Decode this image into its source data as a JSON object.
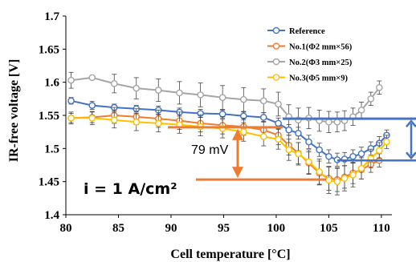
{
  "chart_data": {
    "type": "line",
    "xlabel": "Cell temperature [°C]",
    "ylabel": "IR-free voltage [V]",
    "xlim": [
      80,
      111
    ],
    "ylim": [
      1.4,
      1.7
    ],
    "x_ticks": [
      "80",
      "85",
      "90",
      "95",
      "100",
      "105",
      "110"
    ],
    "y_ticks": [
      "1.4",
      "1.45",
      "1.5",
      "1.55",
      "1.6",
      "1.65",
      "1.7"
    ],
    "legend_position": "top-right",
    "grid": false,
    "series": [
      {
        "name": "Reference",
        "color": "#4472C4",
        "points": [
          [
            80.5,
            1.572
          ],
          [
            82.5,
            1.565
          ],
          [
            84.6,
            1.562
          ],
          [
            86.7,
            1.56
          ],
          [
            88.8,
            1.558
          ],
          [
            90.8,
            1.555
          ],
          [
            92.8,
            1.553
          ],
          [
            94.9,
            1.552
          ],
          [
            96.9,
            1.549
          ],
          [
            98.8,
            1.547
          ],
          [
            100.2,
            1.538
          ],
          [
            101.2,
            1.528
          ],
          [
            102.1,
            1.523
          ],
          [
            103.1,
            1.51
          ],
          [
            104.1,
            1.498
          ],
          [
            105.0,
            1.488
          ],
          [
            105.8,
            1.483
          ],
          [
            106.5,
            1.484
          ],
          [
            107.3,
            1.488
          ],
          [
            108.1,
            1.492
          ],
          [
            109.0,
            1.5
          ],
          [
            109.8,
            1.508
          ],
          [
            110.5,
            1.52
          ]
        ],
        "errors": [
          0.005,
          0.006,
          0.005,
          0.005,
          0.006,
          0.006,
          0.006,
          0.006,
          0.006,
          0.007,
          0.008,
          0.008,
          0.009,
          0.01,
          0.01,
          0.01,
          0.01,
          0.01,
          0.01,
          0.01,
          0.01,
          0.01,
          0.008
        ]
      },
      {
        "name": "No.1(Φ2 mm×56)",
        "color": "#ED7D31",
        "points": [
          [
            80.5,
            1.546
          ],
          [
            82.5,
            1.547
          ],
          [
            84.6,
            1.55
          ],
          [
            86.7,
            1.548
          ],
          [
            88.8,
            1.545
          ],
          [
            90.8,
            1.542
          ],
          [
            92.8,
            1.538
          ],
          [
            94.9,
            1.535
          ],
          [
            96.9,
            1.533
          ],
          [
            98.8,
            1.528
          ],
          [
            100.2,
            1.52
          ],
          [
            101.2,
            1.505
          ],
          [
            102.1,
            1.493
          ],
          [
            103.1,
            1.478
          ],
          [
            104.1,
            1.463
          ],
          [
            105.0,
            1.455
          ],
          [
            105.8,
            1.453
          ],
          [
            106.5,
            1.457
          ],
          [
            107.3,
            1.463
          ],
          [
            108.1,
            1.468
          ],
          [
            109.0,
            1.476
          ],
          [
            109.8,
            1.482
          ]
        ],
        "errors": [
          0.007,
          0.008,
          0.012,
          0.012,
          0.013,
          0.013,
          0.013,
          0.013,
          0.013,
          0.013,
          0.014,
          0.015,
          0.016,
          0.017,
          0.018,
          0.018,
          0.018,
          0.017,
          0.016,
          0.014,
          0.012,
          0.01
        ]
      },
      {
        "name": "No.2(Φ3 mm×25)",
        "color": "#A5A5A5",
        "points": [
          [
            80.5,
            1.603
          ],
          [
            82.5,
            1.607
          ],
          [
            84.6,
            1.598
          ],
          [
            86.7,
            1.591
          ],
          [
            88.8,
            1.588
          ],
          [
            90.8,
            1.584
          ],
          [
            92.8,
            1.581
          ],
          [
            94.9,
            1.577
          ],
          [
            96.9,
            1.574
          ],
          [
            98.8,
            1.572
          ],
          [
            100.2,
            1.567
          ],
          [
            101.2,
            1.548
          ],
          [
            102.1,
            1.543
          ],
          [
            103.1,
            1.546
          ],
          [
            104.1,
            1.542
          ],
          [
            105.0,
            1.54
          ],
          [
            105.8,
            1.54
          ],
          [
            106.5,
            1.542
          ],
          [
            107.3,
            1.548
          ],
          [
            108.1,
            1.558
          ],
          [
            109.0,
            1.575
          ],
          [
            109.8,
            1.592
          ]
        ],
        "errors": [
          0.012,
          0.002,
          0.014,
          0.016,
          0.017,
          0.017,
          0.018,
          0.018,
          0.018,
          0.018,
          0.018,
          0.018,
          0.018,
          0.016,
          0.016,
          0.016,
          0.015,
          0.015,
          0.013,
          0.012,
          0.01,
          0.01
        ]
      },
      {
        "name": "No.3(Φ5 mm×9)",
        "color": "#FFC000",
        "points": [
          [
            80.5,
            1.546
          ],
          [
            82.5,
            1.546
          ],
          [
            84.6,
            1.543
          ],
          [
            86.7,
            1.54
          ],
          [
            88.8,
            1.538
          ],
          [
            90.8,
            1.536
          ],
          [
            92.8,
            1.533
          ],
          [
            94.9,
            1.53
          ],
          [
            96.9,
            1.525
          ],
          [
            98.8,
            1.518
          ],
          [
            100.2,
            1.514
          ],
          [
            101.2,
            1.498
          ],
          [
            102.1,
            1.492
          ],
          [
            103.1,
            1.48
          ],
          [
            104.1,
            1.465
          ],
          [
            105.0,
            1.452
          ],
          [
            105.8,
            1.45
          ],
          [
            106.5,
            1.455
          ],
          [
            107.3,
            1.46
          ],
          [
            108.1,
            1.47
          ],
          [
            109.0,
            1.485
          ],
          [
            109.8,
            1.497
          ],
          [
            110.5,
            1.51
          ]
        ],
        "errors": [
          0.009,
          0.01,
          0.012,
          0.013,
          0.013,
          0.013,
          0.014,
          0.014,
          0.014,
          0.014,
          0.015,
          0.016,
          0.017,
          0.018,
          0.019,
          0.02,
          0.02,
          0.019,
          0.018,
          0.016,
          0.014,
          0.012,
          0.01
        ]
      }
    ],
    "annotations": {
      "delta_label": "79 mV",
      "condition": "i = 1 A/cm²"
    }
  },
  "colors": {
    "annotation": "#ED7D31",
    "reference_arrow": "#4472C4"
  }
}
